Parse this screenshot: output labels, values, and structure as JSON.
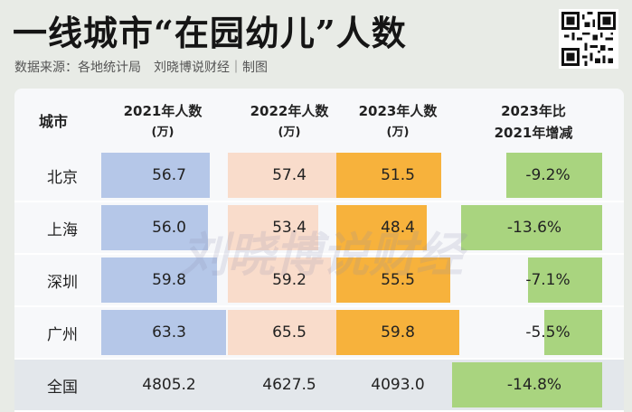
{
  "title": "一线城市“在园幼儿”人数",
  "subtitle": "数据来源：各地统计局　刘晓博说财经｜制图",
  "watermark": "刘晓博说财经",
  "headers": {
    "city": "城市",
    "c2021": "2021年人数",
    "c2022": "2022年人数",
    "c2023": "2023年人数",
    "unit": "(万)",
    "change_l1": "2023年比",
    "change_l2": "2021年增减"
  },
  "rows": [
    {
      "city": "北京",
      "v2021": "56.7",
      "v2022": "57.4",
      "v2023": "51.5",
      "change": "-9.2%"
    },
    {
      "city": "上海",
      "v2021": "56.0",
      "v2022": "53.4",
      "v2023": "48.4",
      "change": "-13.6%"
    },
    {
      "city": "深圳",
      "v2021": "59.8",
      "v2022": "59.2",
      "v2023": "55.5",
      "change": "-7.1%"
    },
    {
      "city": "广州",
      "v2021": "63.3",
      "v2022": "65.5",
      "v2023": "59.8",
      "change": "-5.5%"
    },
    {
      "city": "全国",
      "v2021": "4805.2",
      "v2022": "4627.5",
      "v2023": "4093.0",
      "change": "-14.8%"
    }
  ],
  "colors": {
    "c2021": "#b5c7e8",
    "c2022": "#f9dccb",
    "c2023": "#f7b23c",
    "change": "#a9d47f"
  }
}
